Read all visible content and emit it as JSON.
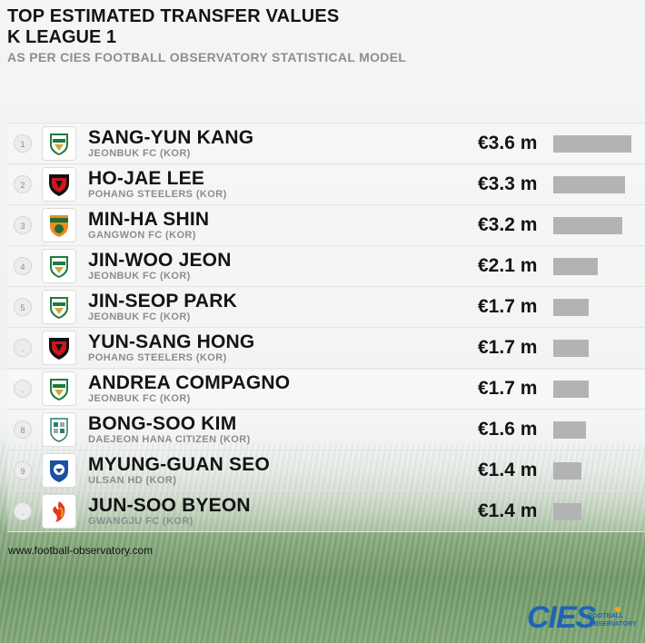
{
  "header": {
    "title": "TOP ESTIMATED TRANSFER VALUES",
    "league": "K LEAGUE 1",
    "subtitle": "AS PER CIES FOOTBALL OBSERVATORY STATISTICAL MODEL"
  },
  "footer": {
    "source": "www.football-observatory.com"
  },
  "brand": {
    "word": "CIES",
    "sub_line1": "FOOTBALL",
    "sub_line2": "OBSERVATORY",
    "color": "#1f64b4"
  },
  "colors": {
    "bar": "#b3b3b3",
    "text": "#141414",
    "muted": "#8c8c8c"
  },
  "chart_data": {
    "type": "bar",
    "orientation": "horizontal",
    "unit": "€ m",
    "xlim": [
      0,
      3.6
    ],
    "rows": [
      {
        "rank": "1",
        "player": "SANG-YUN KANG",
        "club": "JEONBUK FC (KOR)",
        "value": 3.6,
        "label": "€3.6 m",
        "logo": "jeonbuk-crest"
      },
      {
        "rank": "2",
        "player": "HO-JAE LEE",
        "club": "POHANG STEELERS (KOR)",
        "value": 3.3,
        "label": "€3.3 m",
        "logo": "pohang-crest"
      },
      {
        "rank": "3",
        "player": "MIN-HA SHIN",
        "club": "GANGWON FC (KOR)",
        "value": 3.2,
        "label": "€3.2 m",
        "logo": "gangwon-crest"
      },
      {
        "rank": "4",
        "player": "JIN-WOO JEON",
        "club": "JEONBUK FC (KOR)",
        "value": 2.1,
        "label": "€2.1 m",
        "logo": "jeonbuk-crest"
      },
      {
        "rank": "5",
        "player": "JIN-SEOP PARK",
        "club": "JEONBUK FC (KOR)",
        "value": 1.7,
        "label": "€1.7 m",
        "logo": "jeonbuk-crest"
      },
      {
        "rank": ".",
        "player": "YUN-SANG HONG",
        "club": "POHANG STEELERS (KOR)",
        "value": 1.7,
        "label": "€1.7 m",
        "logo": "pohang-crest"
      },
      {
        "rank": ".",
        "player": "ANDREA COMPAGNO",
        "club": "JEONBUK FC (KOR)",
        "value": 1.7,
        "label": "€1.7 m",
        "logo": "jeonbuk-crest"
      },
      {
        "rank": "8",
        "player": "BONG-SOO KIM",
        "club": "DAEJEON HANA CITIZEN (KOR)",
        "value": 1.6,
        "label": "€1.6 m",
        "logo": "daejeon-crest"
      },
      {
        "rank": "9",
        "player": "MYUNG-GUAN SEO",
        "club": "ULSAN HD (KOR)",
        "value": 1.4,
        "label": "€1.4 m",
        "logo": "ulsan-crest"
      },
      {
        "rank": ".",
        "player": "JUN-SOO BYEON",
        "club": "GWANGJU FC (KOR)",
        "value": 1.4,
        "label": "€1.4 m",
        "logo": "gwangju-crest"
      }
    ]
  }
}
